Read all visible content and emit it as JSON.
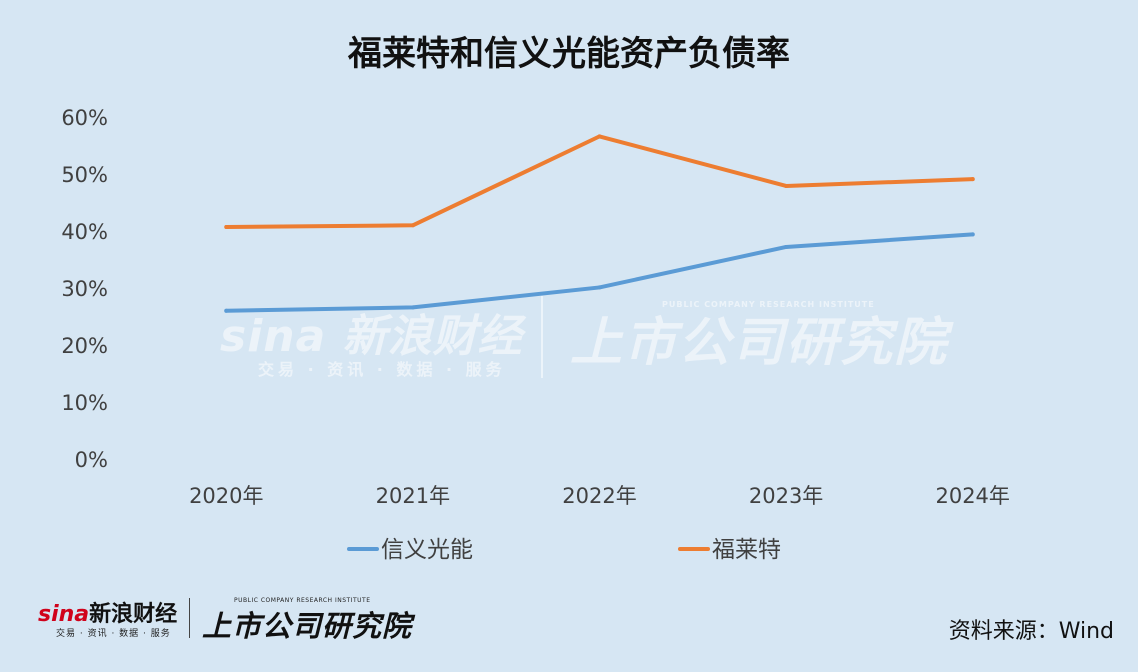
{
  "chart_data": {
    "type": "line",
    "title": "福莱特和信义光能资产负债率",
    "categories": [
      "2020年",
      "2021年",
      "2022年",
      "2023年",
      "2024年"
    ],
    "series": [
      {
        "name": "信义光能",
        "color": "#5b9bd5",
        "values": [
          26.0,
          26.6,
          30.1,
          37.2,
          39.4
        ]
      },
      {
        "name": "福莱特",
        "color": "#ed7d31",
        "values": [
          40.7,
          41.0,
          56.6,
          47.9,
          49.1
        ]
      }
    ],
    "y_ticks": [
      0,
      10,
      20,
      30,
      40,
      50,
      60
    ],
    "y_tick_labels": [
      "0%",
      "10%",
      "20%",
      "30%",
      "40%",
      "50%",
      "60%"
    ],
    "ylim": [
      0,
      60
    ],
    "grid": false,
    "legend": "bottom"
  },
  "watermark": {
    "sina": "sina 新浪财经",
    "sina_sub": "交易 · 资讯 · 数据 · 服务",
    "institute": "上市公司研究院",
    "institute_en": "PUBLIC COMPANY RESEARCH INSTITUTE"
  },
  "footer": {
    "sina_logo": "新浪财经",
    "sina_logo_mark": "sina",
    "sina_sub": "交易 · 资讯 · 数据 · 服务",
    "institute": "上市公司研究院",
    "institute_en": "PUBLIC COMPANY RESEARCH INSTITUTE",
    "source": "资料来源：Wind"
  }
}
